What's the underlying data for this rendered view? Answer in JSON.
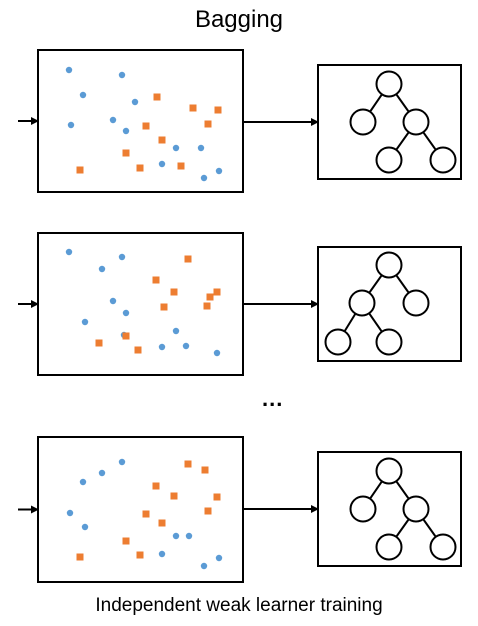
{
  "title": "Bagging",
  "caption": "Independent weak learner training",
  "ellipsis": "...",
  "colors": {
    "blue": "#5B9BD5",
    "orange": "#ED7D31",
    "stroke": "#000000"
  },
  "rows": [
    {
      "tree": "asym-right",
      "blue": [
        [
          69,
          70
        ],
        [
          122,
          75
        ],
        [
          83,
          95
        ],
        [
          135,
          102
        ],
        [
          71,
          125
        ],
        [
          113,
          120
        ],
        [
          126,
          131
        ],
        [
          176,
          148
        ],
        [
          201,
          148
        ],
        [
          162,
          164
        ],
        [
          219,
          171
        ],
        [
          204,
          178
        ]
      ],
      "orange": [
        [
          157,
          97
        ],
        [
          193,
          108
        ],
        [
          218,
          110
        ],
        [
          146,
          126
        ],
        [
          208,
          124
        ],
        [
          162,
          140
        ],
        [
          126,
          153
        ],
        [
          80,
          170
        ],
        [
          140,
          168
        ],
        [
          181,
          166
        ]
      ]
    },
    {
      "tree": "left-chain",
      "blue": [
        [
          69,
          252
        ],
        [
          102,
          269
        ],
        [
          122,
          257
        ],
        [
          113,
          301
        ],
        [
          126,
          313
        ],
        [
          85,
          322
        ],
        [
          124,
          335
        ],
        [
          176,
          331
        ],
        [
          162,
          347
        ],
        [
          186,
          346
        ],
        [
          217,
          353
        ]
      ],
      "orange": [
        [
          188,
          259
        ],
        [
          156,
          280
        ],
        [
          174,
          292
        ],
        [
          217,
          292
        ],
        [
          210,
          297
        ],
        [
          164,
          307
        ],
        [
          99,
          343
        ],
        [
          126,
          336
        ],
        [
          138,
          350
        ],
        [
          207,
          306
        ]
      ]
    },
    {
      "tree": "asym-right",
      "blue": [
        [
          122,
          462
        ],
        [
          102,
          473
        ],
        [
          83,
          482
        ],
        [
          70,
          513
        ],
        [
          85,
          527
        ],
        [
          176,
          536
        ],
        [
          189,
          536
        ],
        [
          162,
          554
        ],
        [
          219,
          558
        ],
        [
          204,
          566
        ]
      ],
      "orange": [
        [
          188,
          464
        ],
        [
          205,
          470
        ],
        [
          156,
          486
        ],
        [
          174,
          496
        ],
        [
          217,
          497
        ],
        [
          146,
          514
        ],
        [
          208,
          511
        ],
        [
          162,
          523
        ],
        [
          126,
          541
        ],
        [
          80,
          557
        ],
        [
          140,
          555
        ]
      ]
    }
  ]
}
